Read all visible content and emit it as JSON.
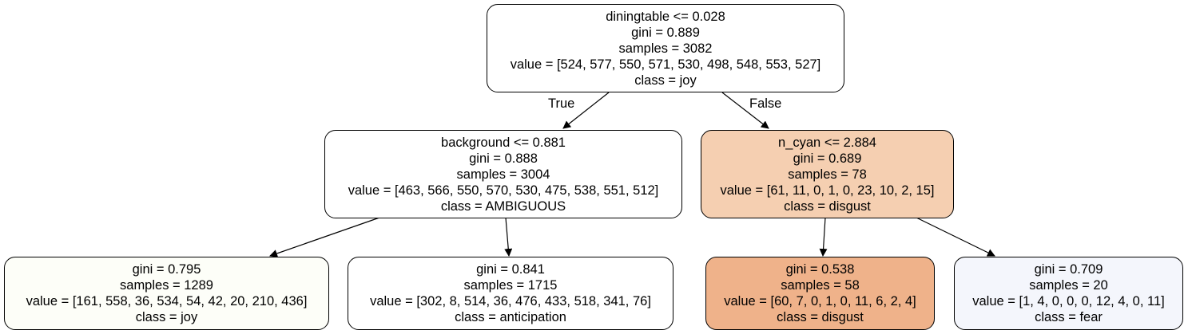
{
  "tree": {
    "edge_labels": {
      "true": "True",
      "false": "False"
    },
    "nodes": [
      {
        "id": "root",
        "split": "diningtable <= 0.028",
        "gini": "gini = 0.889",
        "samples": "samples = 3082",
        "value": "value = [524, 577, 550, 571, 530, 498, 548, 553, 527]",
        "class": "class = joy",
        "fill": "#ffffff"
      },
      {
        "id": "left",
        "split": "background <= 0.881",
        "gini": "gini = 0.888",
        "samples": "samples = 3004",
        "value": "value = [463, 566, 550, 570, 530, 475, 538, 551, 512]",
        "class": "class = AMBIGUOUS",
        "fill": "#ffffff"
      },
      {
        "id": "right",
        "split": "n_cyan <= 2.884",
        "gini": "gini = 0.689",
        "samples": "samples = 78",
        "value": "value = [61, 11, 0, 1, 0, 23, 10, 2, 15]",
        "class": "class = disgust",
        "fill": "#f5cfb1"
      },
      {
        "id": "ll",
        "gini": "gini = 0.795",
        "samples": "samples = 1289",
        "value": "value = [161, 558, 36, 534, 54, 42, 20, 210, 436]",
        "class": "class = joy",
        "fill": "#fdfef8"
      },
      {
        "id": "lr",
        "gini": "gini = 0.841",
        "samples": "samples = 1715",
        "value": "value = [302, 8, 514, 36, 476, 433, 518, 341, 76]",
        "class": "class = anticipation",
        "fill": "#ffffff"
      },
      {
        "id": "rl",
        "gini": "gini = 0.538",
        "samples": "samples = 58",
        "value": "value = [60, 7, 0, 1, 0, 11, 6, 2, 4]",
        "class": "class = disgust",
        "fill": "#efb28a"
      },
      {
        "id": "rr",
        "gini": "gini = 0.709",
        "samples": "samples = 20",
        "value": "value = [1, 4, 0, 0, 0, 12, 4, 0, 11]",
        "class": "class = fear",
        "fill": "#f4f6fc"
      }
    ]
  }
}
